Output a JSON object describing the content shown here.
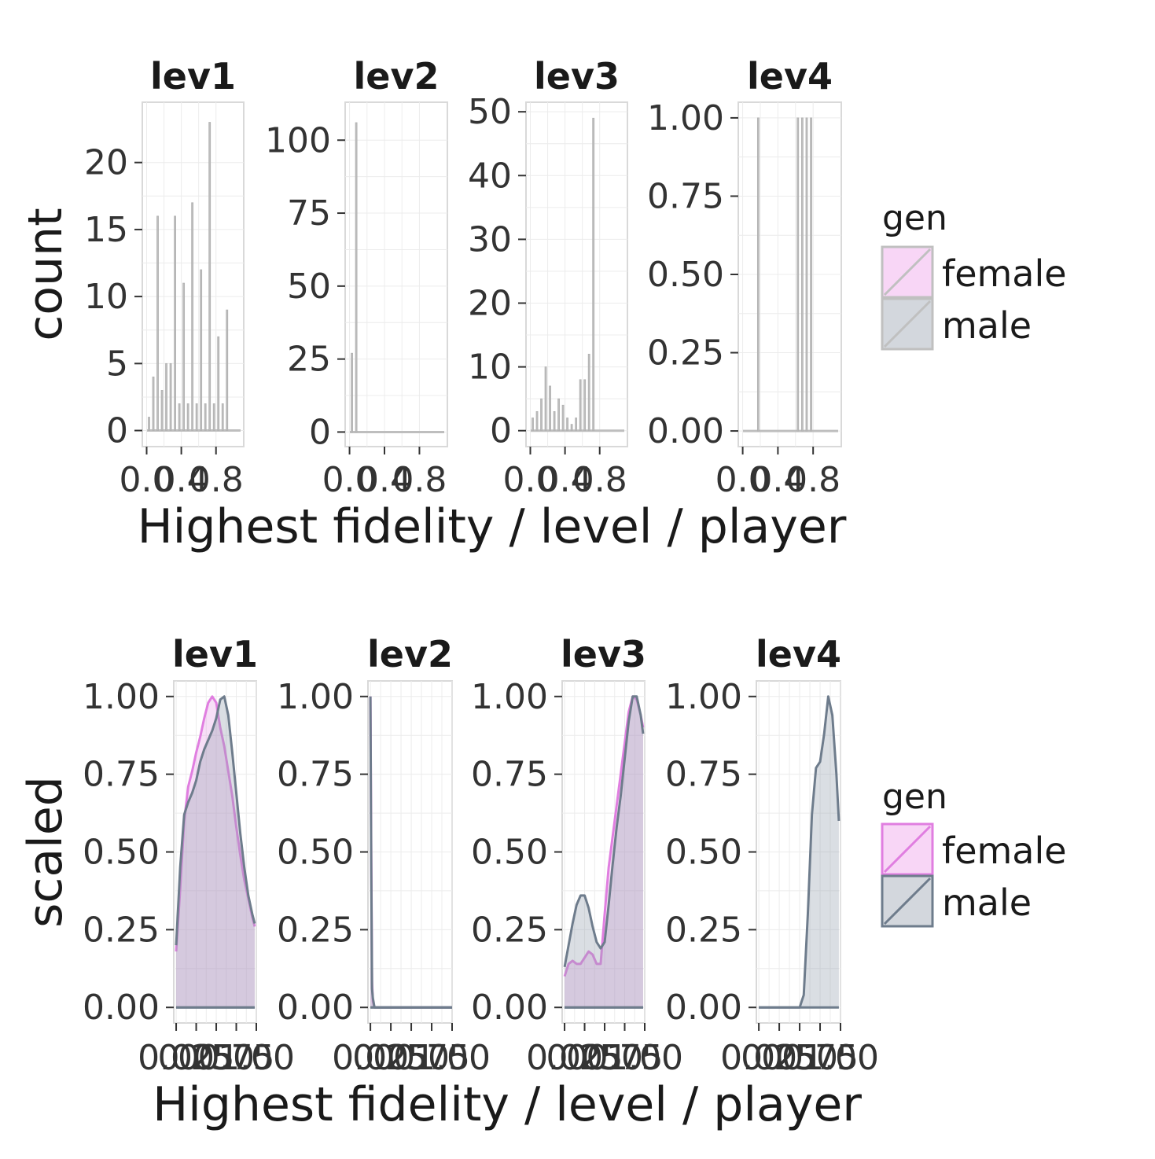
{
  "chart_data": [
    {
      "type": "bar",
      "title": "",
      "xlabel": "Highest fidelity / level / player",
      "ylabel": "count",
      "x_tick_labels": [
        "0.0",
        "0.4",
        "0.8"
      ],
      "x_tick_values": [
        0,
        0.4,
        0.8
      ],
      "xlim": [
        -0.05,
        1.12
      ],
      "grid": true,
      "legend": {
        "title": "gen",
        "position": "right",
        "entries": [
          {
            "label": "female",
            "fill": "#f8d6f6",
            "stroke": "#c0c0c0"
          },
          {
            "label": "male",
            "fill": "#d3d7dd",
            "stroke": "#c0c0c0"
          }
        ]
      },
      "bar_fill": "#bebebe",
      "panels": [
        {
          "strip": "lev1",
          "ylim": [
            -1.2,
            24.5
          ],
          "y_ticks": [
            0,
            5,
            10,
            15,
            20
          ],
          "y_tick_labels": [
            "0",
            "5",
            "10",
            "15",
            "20"
          ],
          "bin_width": 0.05,
          "x": [
            0.0,
            0.05,
            0.1,
            0.15,
            0.2,
            0.25,
            0.3,
            0.35,
            0.4,
            0.45,
            0.5,
            0.55,
            0.6,
            0.65,
            0.7,
            0.75,
            0.8,
            0.85,
            0.9,
            0.95
          ],
          "values": [
            1,
            4,
            16,
            3,
            5,
            5,
            16,
            2,
            11,
            2,
            17,
            2,
            12,
            2,
            23,
            2,
            7,
            2,
            9,
            0
          ]
        },
        {
          "strip": "lev2",
          "ylim": [
            -5,
            113
          ],
          "y_ticks": [
            0,
            25,
            50,
            75,
            100
          ],
          "y_tick_labels": [
            "0",
            "25",
            "50",
            "75",
            "100"
          ],
          "bin_width": 0.05,
          "x": [
            0.0,
            0.05,
            0.1,
            0.15,
            0.2,
            0.25,
            0.3,
            0.35,
            0.4,
            0.45,
            0.5,
            0.55,
            0.6,
            0.65,
            0.7,
            0.75,
            0.8,
            0.85,
            0.9,
            0.95
          ],
          "values": [
            27,
            106,
            0,
            0,
            0,
            0,
            0,
            0,
            0,
            0,
            0,
            0,
            0,
            0,
            0,
            0,
            0,
            0,
            0,
            0
          ]
        },
        {
          "strip": "lev3",
          "ylim": [
            -2.5,
            51.5
          ],
          "y_ticks": [
            0,
            10,
            20,
            30,
            40,
            50
          ],
          "y_tick_labels": [
            "0",
            "10",
            "20",
            "30",
            "40",
            "50"
          ],
          "bin_width": 0.05,
          "x": [
            0.0,
            0.05,
            0.1,
            0.15,
            0.2,
            0.25,
            0.3,
            0.35,
            0.4,
            0.45,
            0.5,
            0.55,
            0.6,
            0.65,
            0.7,
            0.75,
            0.8,
            0.85,
            0.9,
            0.95
          ],
          "values": [
            2,
            3,
            5,
            10,
            7,
            3,
            5,
            4,
            2,
            1,
            2,
            8,
            8,
            12,
            49,
            0,
            0,
            0,
            0,
            0
          ]
        },
        {
          "strip": "lev4",
          "ylim": [
            -0.05,
            1.05
          ],
          "y_ticks": [
            0,
            0.25,
            0.5,
            0.75,
            1
          ],
          "y_tick_labels": [
            "0.00",
            "0.25",
            "0.50",
            "0.75",
            "1.00"
          ],
          "bin_width": 0.05,
          "x": [
            0.15,
            0.6,
            0.65,
            0.7,
            0.75
          ],
          "values": [
            1,
            1,
            1,
            1,
            1
          ]
        }
      ]
    },
    {
      "type": "area",
      "title": "",
      "xlabel": "Highest fidelity / level / player",
      "ylabel": "scaled",
      "x_tick_labels": [
        "0.00",
        "0.25",
        "0.50",
        "0.75",
        "1.00"
      ],
      "x_tick_values": [
        0,
        0.25,
        0.5,
        0.75,
        1
      ],
      "grid": true,
      "legend": {
        "title": "gen",
        "position": "right",
        "entries": [
          {
            "label": "female",
            "fill": "#f8d6f6",
            "stroke": "#e07ee0"
          },
          {
            "label": "male",
            "fill": "#d3d7dd",
            "stroke": "#6e7c8c"
          }
        ]
      },
      "panels": [
        {
          "strip": "lev1",
          "xlim": [
            -0.03,
            1.0
          ],
          "ylim": [
            -0.05,
            1.05
          ],
          "y_ticks": [
            0,
            0.25,
            0.5,
            0.75,
            1
          ],
          "y_tick_labels": [
            "0.00",
            "0.25",
            "0.50",
            "0.75",
            "1.00"
          ],
          "series": [
            {
              "name": "female",
              "x": [
                0.0,
                0.05,
                0.1,
                0.15,
                0.2,
                0.25,
                0.3,
                0.35,
                0.4,
                0.45,
                0.5,
                0.55,
                0.6,
                0.65,
                0.7,
                0.75,
                0.8,
                0.85,
                0.9,
                0.95,
                0.98
              ],
              "values": [
                0.18,
                0.38,
                0.6,
                0.71,
                0.76,
                0.82,
                0.87,
                0.93,
                0.98,
                1.0,
                0.98,
                0.9,
                0.84,
                0.76,
                0.68,
                0.58,
                0.49,
                0.41,
                0.35,
                0.29,
                0.26
              ]
            },
            {
              "name": "male",
              "x": [
                0.0,
                0.05,
                0.1,
                0.15,
                0.2,
                0.25,
                0.3,
                0.35,
                0.4,
                0.45,
                0.5,
                0.55,
                0.6,
                0.65,
                0.7,
                0.75,
                0.8,
                0.85,
                0.9,
                0.95,
                0.98
              ],
              "values": [
                0.2,
                0.45,
                0.62,
                0.66,
                0.69,
                0.73,
                0.79,
                0.83,
                0.86,
                0.89,
                0.93,
                0.99,
                1.0,
                0.94,
                0.82,
                0.69,
                0.56,
                0.45,
                0.36,
                0.3,
                0.27
              ]
            }
          ]
        },
        {
          "strip": "lev2",
          "xlim": [
            -0.03,
            1.0
          ],
          "ylim": [
            -0.05,
            1.05
          ],
          "y_ticks": [
            0,
            0.25,
            0.5,
            0.75,
            1
          ],
          "y_tick_labels": [
            "0.00",
            "0.25",
            "0.50",
            "0.75",
            "1.00"
          ],
          "series": [
            {
              "name": "female",
              "x": [
                0.0,
                0.01,
                0.02,
                0.03,
                0.05,
                0.1,
                0.5,
                1.0
              ],
              "values": [
                1.0,
                0.5,
                0.08,
                0.02,
                0.0,
                0.0,
                0.0,
                0.0
              ]
            },
            {
              "name": "male",
              "x": [
                0.0,
                0.01,
                0.02,
                0.03,
                0.05,
                0.1,
                0.5,
                1.0
              ],
              "values": [
                1.0,
                0.45,
                0.06,
                0.03,
                0.0,
                0.0,
                0.0,
                0.0
              ]
            }
          ]
        },
        {
          "strip": "lev3",
          "xlim": [
            -0.03,
            1.0
          ],
          "ylim": [
            -0.05,
            1.05
          ],
          "y_ticks": [
            0,
            0.25,
            0.5,
            0.75,
            1
          ],
          "y_tick_labels": [
            "0.00",
            "0.25",
            "0.50",
            "0.75",
            "1.00"
          ],
          "series": [
            {
              "name": "female",
              "x": [
                0.0,
                0.05,
                0.1,
                0.15,
                0.2,
                0.25,
                0.3,
                0.35,
                0.4,
                0.45,
                0.5,
                0.55,
                0.6,
                0.65,
                0.7,
                0.75,
                0.8,
                0.85,
                0.9,
                0.95,
                0.98
              ],
              "values": [
                0.1,
                0.14,
                0.15,
                0.14,
                0.14,
                0.16,
                0.18,
                0.17,
                0.14,
                0.14,
                0.3,
                0.45,
                0.55,
                0.65,
                0.75,
                0.85,
                0.95,
                1.0,
                0.99,
                0.94,
                0.9
              ]
            },
            {
              "name": "male",
              "x": [
                0.0,
                0.05,
                0.1,
                0.15,
                0.2,
                0.25,
                0.3,
                0.35,
                0.4,
                0.45,
                0.5,
                0.55,
                0.6,
                0.65,
                0.7,
                0.75,
                0.8,
                0.85,
                0.9,
                0.95,
                0.98
              ],
              "values": [
                0.13,
                0.2,
                0.27,
                0.33,
                0.36,
                0.36,
                0.32,
                0.26,
                0.21,
                0.19,
                0.21,
                0.33,
                0.46,
                0.58,
                0.68,
                0.8,
                0.92,
                1.0,
                1.0,
                0.94,
                0.88
              ]
            }
          ]
        },
        {
          "strip": "lev4",
          "xlim": [
            -0.03,
            1.0
          ],
          "ylim": [
            -0.05,
            1.05
          ],
          "y_ticks": [
            0,
            0.25,
            0.5,
            0.75,
            1
          ],
          "y_tick_labels": [
            "0.00",
            "0.25",
            "0.50",
            "0.75",
            "1.00"
          ],
          "series": [
            {
              "name": "male",
              "x": [
                0.0,
                0.3,
                0.5,
                0.55,
                0.6,
                0.65,
                0.7,
                0.75,
                0.8,
                0.85,
                0.9,
                0.95,
                0.98
              ],
              "values": [
                0.0,
                0.0,
                0.0,
                0.04,
                0.3,
                0.62,
                0.77,
                0.79,
                0.88,
                1.0,
                0.94,
                0.75,
                0.6
              ]
            }
          ]
        }
      ]
    }
  ]
}
